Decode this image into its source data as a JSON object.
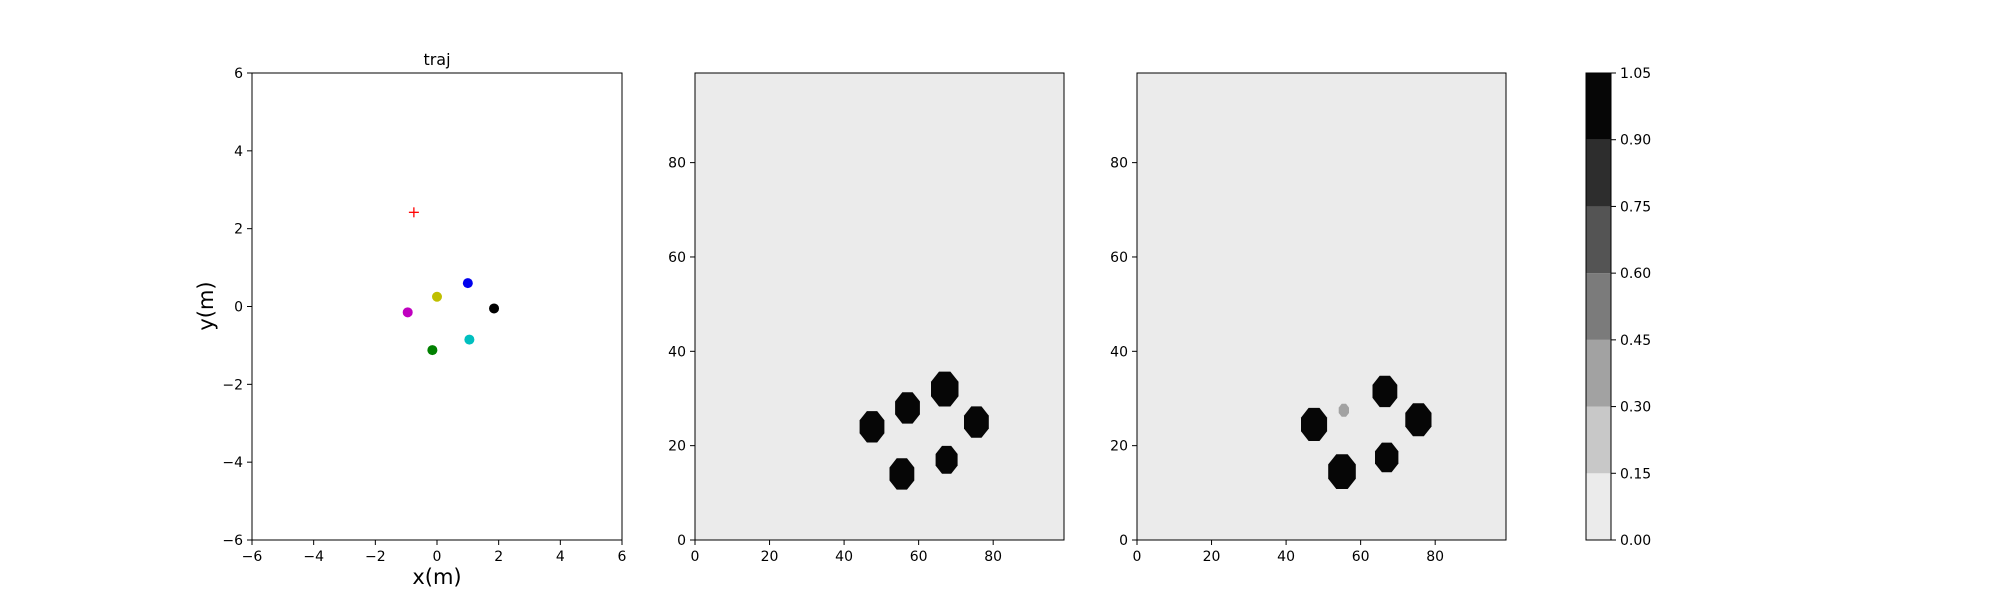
{
  "chart_data": [
    {
      "type": "scatter",
      "title": "traj",
      "xlabel": "x(m)",
      "ylabel": "y(m)",
      "xlim": [
        -6,
        6
      ],
      "ylim": [
        -6,
        6
      ],
      "xticks": [
        -6,
        -4,
        -2,
        0,
        2,
        4,
        6
      ],
      "yticks": [
        -6,
        -4,
        -2,
        0,
        2,
        4,
        6
      ],
      "grid": false,
      "points": [
        {
          "x": 1.0,
          "y": 0.6,
          "color": "#0000ee",
          "marker": "circle"
        },
        {
          "x": 0.0,
          "y": 0.25,
          "color": "#bfbf00",
          "marker": "circle"
        },
        {
          "x": 1.85,
          "y": -0.05,
          "color": "#000000",
          "marker": "circle"
        },
        {
          "x": -0.95,
          "y": -0.15,
          "color": "#bf00bf",
          "marker": "circle"
        },
        {
          "x": 1.05,
          "y": -0.85,
          "color": "#00bfbf",
          "marker": "circle"
        },
        {
          "x": -0.15,
          "y": -1.12,
          "color": "#008000",
          "marker": "circle"
        },
        {
          "x": -0.75,
          "y": 2.42,
          "color": "#ff0000",
          "marker": "plus"
        }
      ]
    },
    {
      "type": "heatmap",
      "title": "",
      "xlim": [
        0,
        99
      ],
      "ylim": [
        0,
        99
      ],
      "xticks": [
        0,
        20,
        40,
        60,
        80
      ],
      "yticks": [
        0,
        20,
        40,
        60,
        80
      ],
      "background_value": 0.07,
      "blobs": [
        {
          "x": 47.5,
          "y": 24,
          "r": 3.6,
          "value": 1.0
        },
        {
          "x": 57,
          "y": 28,
          "r": 3.6,
          "value": 1.0
        },
        {
          "x": 67,
          "y": 32,
          "r": 4.0,
          "value": 1.0
        },
        {
          "x": 75.5,
          "y": 25,
          "r": 3.6,
          "value": 1.0
        },
        {
          "x": 55.5,
          "y": 14,
          "r": 3.6,
          "value": 1.0
        },
        {
          "x": 67.5,
          "y": 17,
          "r": 3.2,
          "value": 1.0
        }
      ]
    },
    {
      "type": "heatmap",
      "title": "",
      "xlim": [
        0,
        99
      ],
      "ylim": [
        0,
        99
      ],
      "xticks": [
        0,
        20,
        40,
        60,
        80
      ],
      "yticks": [
        0,
        20,
        40,
        60,
        80
      ],
      "background_value": 0.07,
      "blobs": [
        {
          "x": 47.5,
          "y": 24.5,
          "r": 3.8,
          "value": 0.9
        },
        {
          "x": 55,
          "y": 14.5,
          "r": 4.0,
          "value": 0.95
        },
        {
          "x": 66.5,
          "y": 31.5,
          "r": 3.6,
          "value": 0.9
        },
        {
          "x": 75.5,
          "y": 25.5,
          "r": 3.8,
          "value": 0.9
        },
        {
          "x": 67,
          "y": 17.5,
          "r": 3.4,
          "value": 0.9
        },
        {
          "x": 55.5,
          "y": 27.5,
          "r": 1.5,
          "value": 0.35
        }
      ]
    }
  ],
  "colorbar": {
    "levels": [
      0.0,
      0.15,
      0.3,
      0.45,
      0.6,
      0.75,
      0.9,
      1.05
    ],
    "tick_labels": [
      "0.00",
      "0.15",
      "0.30",
      "0.45",
      "0.60",
      "0.75",
      "0.90",
      "1.05"
    ],
    "colors": [
      "#ebebeb",
      "#c8c8c8",
      "#a2a2a2",
      "#7b7b7b",
      "#545454",
      "#2d2d2d",
      "#060606"
    ]
  }
}
